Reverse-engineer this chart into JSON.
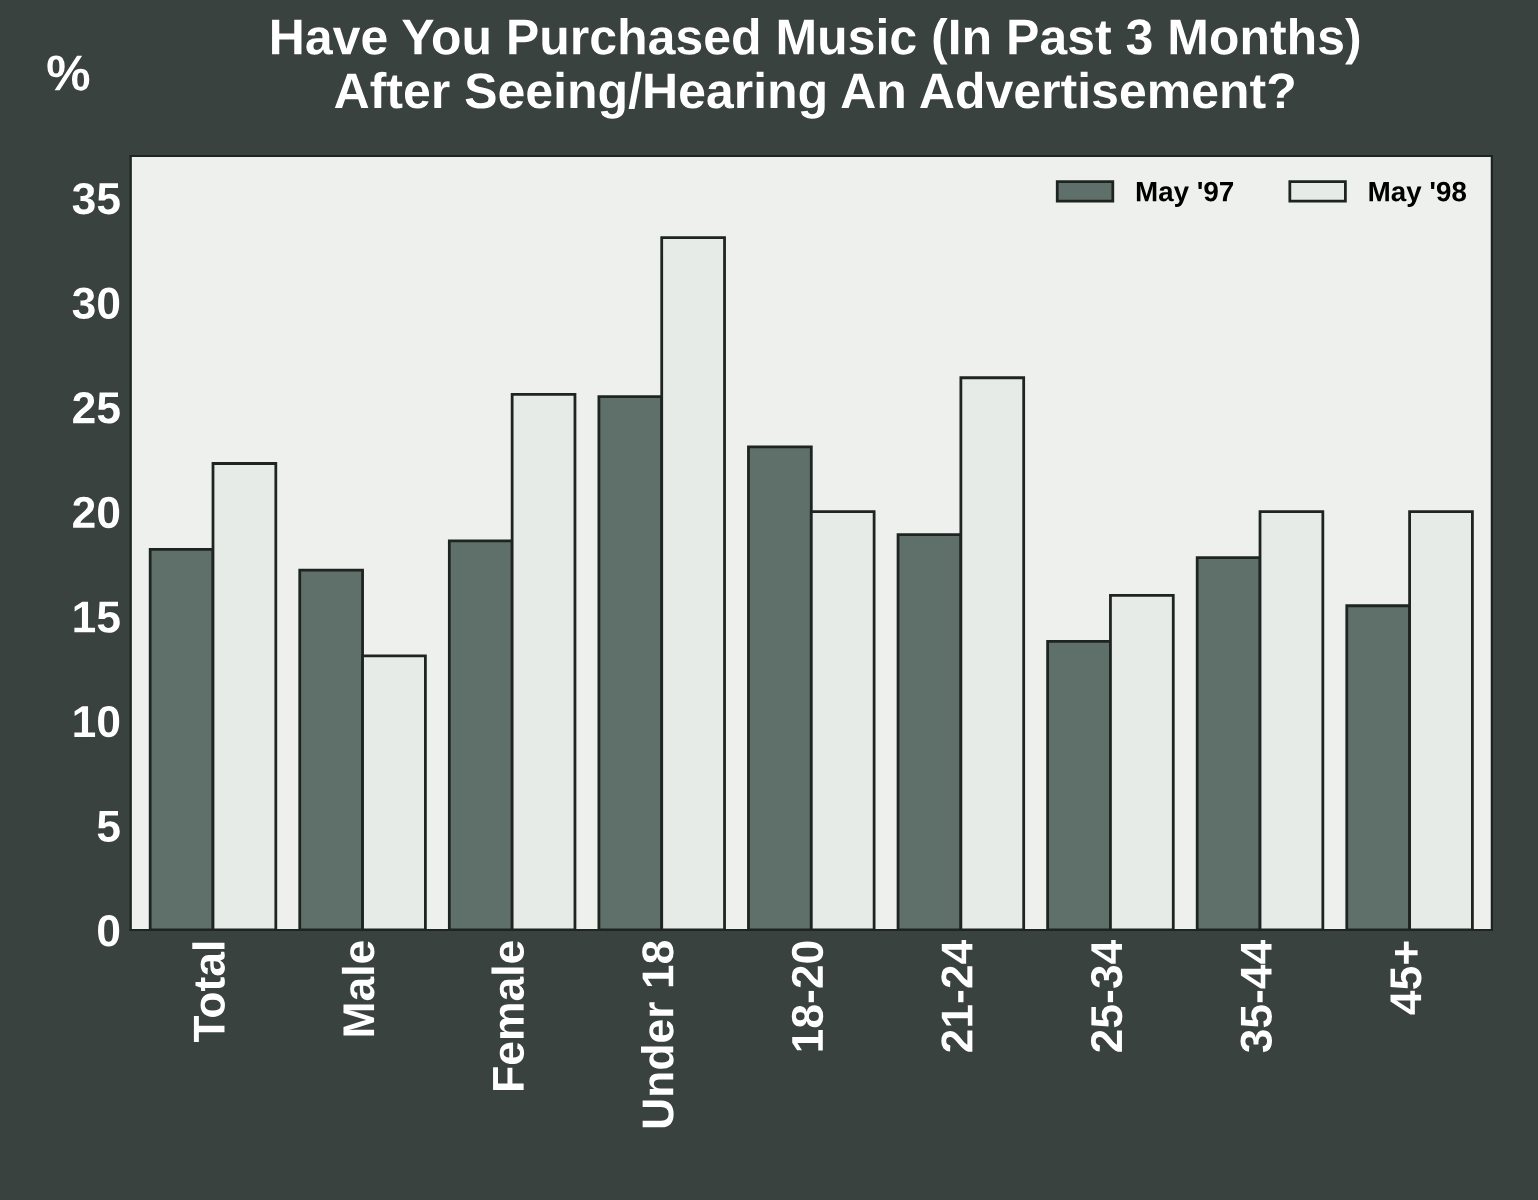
{
  "chart_data": {
    "type": "bar",
    "title": "Have You Purchased Music (In Past 3 Months)\nAfter Seeing/Hearing An Advertisement?",
    "ylabel": "%",
    "categories": [
      "Total",
      "Male",
      "Female",
      "Under 18",
      "18-20",
      "21-24",
      "25-34",
      "35-44",
      "45+"
    ],
    "series": [
      {
        "name": "May '97",
        "color": "#5f6f69",
        "values": [
          18.2,
          17.2,
          18.6,
          25.5,
          23.1,
          18.9,
          13.8,
          17.8,
          15.5
        ]
      },
      {
        "name": "May '98",
        "color": "#e6ebe7",
        "values": [
          22.3,
          13.1,
          25.6,
          33.1,
          20.0,
          26.4,
          16.0,
          20.0,
          20.0
        ]
      }
    ],
    "ylim": [
      0,
      37
    ],
    "yticks": [
      0,
      5,
      10,
      15,
      20,
      25,
      30,
      35
    ],
    "grid": false,
    "legend": "top right"
  }
}
